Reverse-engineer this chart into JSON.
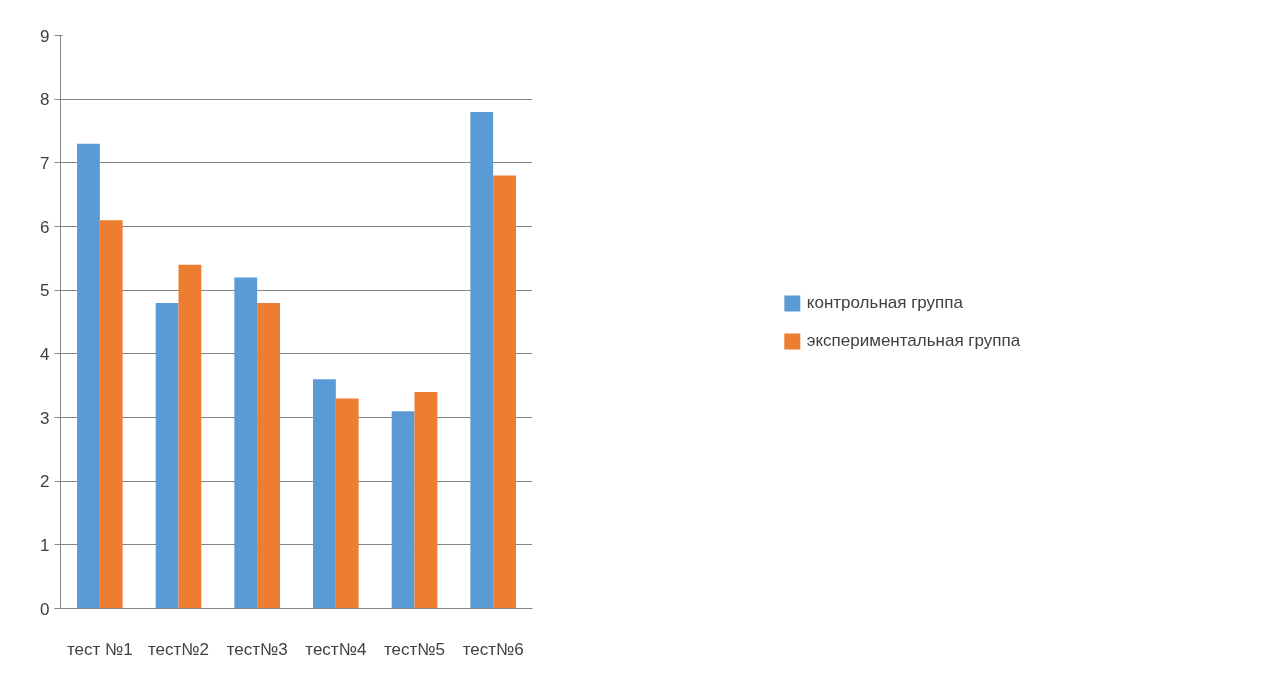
{
  "chart_data": {
    "type": "bar",
    "categories": [
      "тест №1",
      "тест№2",
      "тест№3",
      "тест№4",
      "тест№5",
      "тест№6"
    ],
    "series": [
      {
        "name": "контрольная группа",
        "color": "#5b9bd5",
        "values": [
          7.3,
          4.8,
          5.2,
          3.6,
          3.1,
          7.8
        ]
      },
      {
        "name": "экспериментальная группа",
        "color": "#ed7d31",
        "values": [
          6.1,
          5.4,
          4.8,
          3.3,
          3.4,
          6.8
        ]
      }
    ],
    "ylim": [
      0,
      9
    ],
    "yticks": [
      0,
      1,
      2,
      3,
      4,
      5,
      6,
      7,
      8,
      9
    ],
    "grid": "y",
    "legend": "right"
  }
}
